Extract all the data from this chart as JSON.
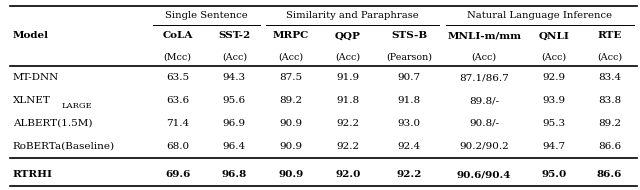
{
  "col_groups": [
    {
      "label": "Single Sentence",
      "span": [
        1,
        2
      ]
    },
    {
      "label": "Similarity and Paraphrase",
      "span": [
        3,
        5
      ]
    },
    {
      "label": "Natural Language Inference",
      "span": [
        6,
        8
      ]
    }
  ],
  "col_headers": [
    "Model",
    "CoLA",
    "SST-2",
    "MRPC",
    "QQP",
    "STS-B",
    "MNLI-m/mm",
    "QNLI",
    "RTE"
  ],
  "col_subheaders": [
    "",
    "(Mcc)",
    "(Acc)",
    "(Acc)",
    "(Acc)",
    "(Pearson)",
    "(Acc)",
    "(Acc)",
    "(Acc)"
  ],
  "rows": [
    {
      "model": "MT-DNN",
      "subscript": null,
      "bold": false,
      "values": [
        "63.5",
        "94.3",
        "87.5",
        "91.9",
        "90.7",
        "87.1/86.7",
        "92.9",
        "83.4"
      ]
    },
    {
      "model": "XLNET",
      "subscript": "LARGE",
      "bold": false,
      "values": [
        "63.6",
        "95.6",
        "89.2",
        "91.8",
        "91.8",
        "89.8/-",
        "93.9",
        "83.8"
      ]
    },
    {
      "model": "ALBERT(1.5M)",
      "subscript": null,
      "bold": false,
      "values": [
        "71.4",
        "96.9",
        "90.9",
        "92.2",
        "93.0",
        "90.8/-",
        "95.3",
        "89.2"
      ]
    },
    {
      "model": "RoBERTa(Baseline)",
      "subscript": null,
      "bold": false,
      "values": [
        "68.0",
        "96.4",
        "90.9",
        "92.2",
        "92.4",
        "90.2/90.2",
        "94.7",
        "86.6"
      ]
    },
    {
      "model": "RTRHI",
      "subscript": null,
      "bold": true,
      "values": [
        "69.6",
        "96.8",
        "90.9",
        "92.0",
        "92.2",
        "90.6/90.4",
        "95.0",
        "86.6"
      ]
    }
  ],
  "col_rel_widths": [
    1.85,
    0.75,
    0.75,
    0.75,
    0.75,
    0.88,
    1.1,
    0.75,
    0.72
  ],
  "background_color": "#ffffff",
  "font_family": "DejaVu Serif",
  "fs_group": 7.2,
  "fs_header": 7.5,
  "fs_sub": 6.8,
  "fs_data": 7.5
}
